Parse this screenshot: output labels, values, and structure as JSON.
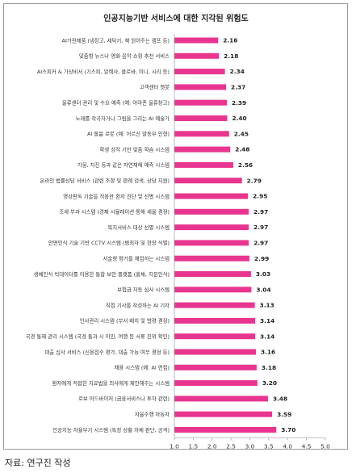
{
  "chart_data": {
    "type": "bar",
    "orientation": "horizontal",
    "title": "인공지능기반 서비스에 대한 지각된 위험도",
    "categories": [
      "AI가전제품 (냉장고, 세탁기, 책 읽어주는 램프 등)",
      "맞춤형 뉴스나 영화·음악·쇼핑 추천 서비스",
      "AI스피커 & 가상비서 (기스피, 알렉사, 클로바, 미니, 시리 등)",
      "고객센터 챗봇",
      "물류센터 관리 및 수요 예측 (예: 아마존 물류창고)",
      "노래를 작곡하거나 그림을 그리는 AI 예술가",
      "AI 돌봄 로봇 (예: 어르신 말동무 인형)",
      "학생 성적 기반 맞춤 학습 시스템",
      "가뭄, 지진 등과 같은 자연재해 예측 시스템",
      "온라인 법률상담 서비스 (관련 조항 및 판례 검색, 상담 지원)",
      "영상판독 기술을 적용한 환자 진단 및 선별 시스템",
      "조세 부과 시스템 (경제 시뮬레이션 통해 세율 결정)",
      "복지서비스 대상 선별 시스템",
      "안면인식 기술 기반 CCTV 시스템 (범죄자 및 현장 식별)",
      "서술형 평가를 채점하는 시스템",
      "생체인식 빅데이터를 이용한 통합 보안 플랫폼 (홍채, 지문인식)",
      "보험금 자동 심사 시스템",
      "직접 기사를 작성하는 AI 기자",
      "인사관리 시스템 (부서 배치 및 발령 결정)",
      "국경 통제 관리 시스템 (국경 통과 시 이민, 여행 등 서류 진위 확인)",
      "대출 심사 서비스 (신용점수 평가, 대출 가능 여부 결정 등)",
      "채용 시스템 (예: AI 면접)",
      "환자에게 적합한 치료법을 의사에게 제안해주는 시스템",
      "로보 어드바이저 (금융서비스나 투자 관련)",
      "자율주행 자동차",
      "인공지능 자율무기 시스템 (특정 상황 자체 판단, 공격)"
    ],
    "values": [
      2.16,
      2.18,
      2.34,
      2.37,
      2.39,
      2.4,
      2.45,
      2.48,
      2.56,
      2.79,
      2.95,
      2.97,
      2.97,
      2.97,
      2.99,
      3.03,
      3.04,
      3.13,
      3.14,
      3.14,
      3.16,
      3.18,
      3.2,
      3.48,
      3.59,
      3.7
    ],
    "value_labels": [
      "2.16",
      "2.18",
      "2.34",
      "2.37",
      "2.39",
      "2.40",
      "2.45",
      "2.48",
      "2.56",
      "2.79",
      "2.95",
      "2.97",
      "2.97",
      "2.97",
      "2.99",
      "3.03",
      "3.04",
      "3.13",
      "3.14",
      "3.14",
      "3.16",
      "3.18",
      "3.20",
      "3.48",
      "3.59",
      "3.70"
    ],
    "xlim": [
      1.0,
      5.0
    ],
    "xticks": [
      "1.0",
      "1.5",
      "2.0",
      "2.5",
      "3.0",
      "3.5",
      "4.0",
      "4.5",
      "5.0"
    ],
    "xlabel": "",
    "ylabel": "",
    "grid": false,
    "bar_color": "#e8358f"
  },
  "footer": {
    "source": "자료: 연구진 작성"
  }
}
